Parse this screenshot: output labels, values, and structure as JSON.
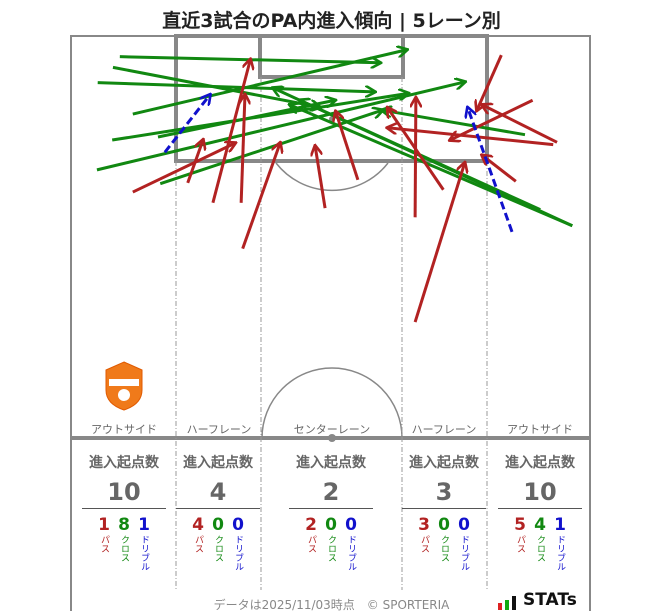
{
  "title": "直近3試合のPA内進入傾向 | 5レーン別",
  "logo_text": "RENOFA",
  "lanes": [
    {
      "name": "アウトサイド",
      "header": "進入起点数",
      "total": "10",
      "pass": "1",
      "cross": "8",
      "dribble": "1"
    },
    {
      "name": "ハーフレーン",
      "header": "進入起点数",
      "total": "4",
      "pass": "4",
      "cross": "0",
      "dribble": "0"
    },
    {
      "name": "センターレーン",
      "header": "進入起点数",
      "total": "2",
      "pass": "2",
      "cross": "0",
      "dribble": "0"
    },
    {
      "name": "ハーフレーン",
      "header": "進入起点数",
      "total": "3",
      "pass": "3",
      "cross": "0",
      "dribble": "0"
    },
    {
      "name": "アウトサイド",
      "header": "進入起点数",
      "total": "10",
      "pass": "5",
      "cross": "4",
      "dribble": "1"
    }
  ],
  "legend": {
    "pass": "パス",
    "cross": "クロス",
    "dribble": "ドリブル"
  },
  "footer": "データは2025/11/03時点　© SPORTERIA",
  "stats_logo": "STATs",
  "colors": {
    "pass": "#b22222",
    "cross": "#118811",
    "dribble": "#1111cc"
  },
  "chart_data": {
    "type": "arrow-map",
    "units": "metres (x from left touchline, y from goal line)",
    "entries": [
      {
        "type": "cross",
        "from": [
          6.4,
          2.7
        ],
        "to": [
          40.5,
          3.5
        ]
      },
      {
        "type": "cross",
        "from": [
          3.5,
          6.1
        ],
        "to": [
          39.8,
          7.3
        ]
      },
      {
        "type": "cross",
        "from": [
          8.1,
          10.2
        ],
        "to": [
          44.0,
          1.8
        ]
      },
      {
        "type": "cross",
        "from": [
          5.4,
          13.6
        ],
        "to": [
          44.2,
          7.5
        ]
      },
      {
        "type": "cross",
        "from": [
          3.4,
          17.5
        ],
        "to": [
          51.6,
          6.0
        ]
      },
      {
        "type": "cross",
        "from": [
          11.7,
          19.3
        ],
        "to": [
          40.8,
          9.7
        ]
      },
      {
        "type": "cross",
        "from": [
          11.4,
          13.2
        ],
        "to": [
          34.6,
          8.4
        ]
      },
      {
        "type": "cross",
        "from": [
          5.5,
          4.1
        ],
        "to": [
          32.6,
          9.3
        ]
      },
      {
        "type": "cross",
        "from": [
          65.7,
          24.8
        ],
        "to": [
          26.5,
          6.8
        ]
      },
      {
        "type": "cross",
        "from": [
          65.7,
          24.8
        ],
        "to": [
          28.7,
          9.0
        ]
      },
      {
        "type": "cross",
        "from": [
          59.5,
          12.9
        ],
        "to": [
          40.8,
          9.7
        ]
      },
      {
        "type": "cross",
        "from": [
          61.5,
          22.7
        ],
        "to": [
          30.0,
          8.4
        ]
      },
      {
        "type": "pass",
        "from": [
          8.1,
          20.4
        ],
        "to": [
          21.5,
          14.0
        ]
      },
      {
        "type": "pass",
        "from": [
          15.3,
          19.2
        ],
        "to": [
          17.3,
          13.6
        ]
      },
      {
        "type": "pass",
        "from": [
          18.6,
          21.8
        ],
        "to": [
          23.5,
          3.1
        ]
      },
      {
        "type": "pass",
        "from": [
          22.3,
          21.8
        ],
        "to": [
          22.8,
          7.7
        ]
      },
      {
        "type": "pass",
        "from": [
          22.5,
          27.8
        ],
        "to": [
          27.4,
          14.0
        ]
      },
      {
        "type": "pass",
        "from": [
          33.3,
          22.5
        ],
        "to": [
          32.0,
          14.4
        ]
      },
      {
        "type": "pass",
        "from": [
          37.6,
          18.8
        ],
        "to": [
          34.7,
          9.9
        ]
      },
      {
        "type": "pass",
        "from": [
          48.8,
          20.1
        ],
        "to": [
          41.5,
          9.4
        ]
      },
      {
        "type": "pass",
        "from": [
          45.1,
          23.7
        ],
        "to": [
          45.2,
          8.1
        ]
      },
      {
        "type": "pass",
        "from": [
          45.1,
          37.4
        ],
        "to": [
          51.6,
          16.6
        ]
      },
      {
        "type": "pass",
        "from": [
          56.4,
          2.5
        ],
        "to": [
          53.2,
          9.7
        ]
      },
      {
        "type": "pass",
        "from": [
          60.5,
          8.4
        ],
        "to": [
          49.7,
          13.6
        ]
      },
      {
        "type": "pass",
        "from": [
          63.2,
          14.2
        ],
        "to": [
          41.5,
          12.0
        ]
      },
      {
        "type": "pass",
        "from": [
          63.7,
          13.9
        ],
        "to": [
          53.9,
          9.0
        ]
      },
      {
        "type": "pass",
        "from": [
          58.3,
          19.0
        ],
        "to": [
          53.9,
          15.6
        ]
      },
      {
        "type": "dribble",
        "from": [
          12.3,
          15.2
        ],
        "to": [
          18.2,
          7.7
        ]
      },
      {
        "type": "dribble",
        "from": [
          57.8,
          25.6
        ],
        "to": [
          52.0,
          9.4
        ]
      }
    ]
  }
}
